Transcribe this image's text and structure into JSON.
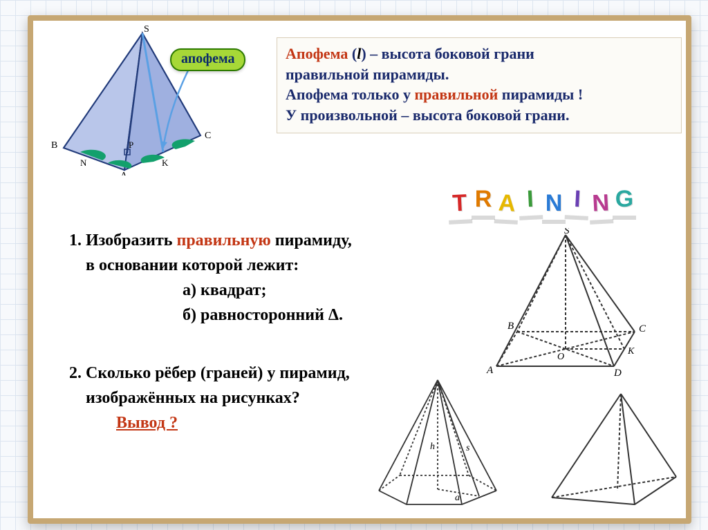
{
  "definition": {
    "term": "Апофема",
    "symbol": "l",
    "text1_a": " – высота боковой грани",
    "text1_b": "правильной пирамиды.",
    "text2_a": "Апофема  только у ",
    "text2_b": "правильной",
    "text2_c": " пирамиды !",
    "text3": "У произвольной – высота боковой грани.",
    "colors": {
      "term": "#c33614",
      "regular": "#1a2a6c",
      "red": "#c33614",
      "normal": "#1a2a6c"
    }
  },
  "training": {
    "letters": [
      "T",
      "R",
      "A",
      "I",
      "N",
      "I",
      "N",
      "G"
    ],
    "colors": [
      "#d62828",
      "#e07a00",
      "#e6b800",
      "#3a9a3a",
      "#2a7bd6",
      "#6a3fb3",
      "#b83a90",
      "#2aa8a0"
    ]
  },
  "tasks": {
    "t1_a": "Изобразить ",
    "t1_b": "правильную",
    "t1_c": " пирамиду,",
    "t1_d": "в основании которой лежит:",
    "t1_sub_a": "а)   квадрат;",
    "t1_sub_b": "б)   равносторонний Δ.",
    "t2_a": "Сколько рёбер (граней) у пирамид,",
    "t2_b": "изображённых  на рисунках?",
    "vyvod": "Вывод ?"
  },
  "diagram_main": {
    "labels": {
      "S": "S",
      "A": "A",
      "B": "B",
      "C": "C",
      "N": "N",
      "P": "P",
      "K": "K"
    },
    "apothem_label": "апофема",
    "stroke": "#223b7a",
    "fill_top": "#9fb0e0",
    "fill_base": "#6f8fd4",
    "apothem_color": "#5aa0e4",
    "angle_color": "#13a06c"
  },
  "diagram_square": {
    "labels": {
      "S": "S",
      "A": "A",
      "B": "B",
      "C": "C",
      "D": "D",
      "O": "O",
      "K": "K"
    },
    "stroke": "#333333",
    "dash": "4,3"
  },
  "diagram_hex": {
    "labels": {
      "h": "h",
      "s": "s",
      "a": "a"
    },
    "stroke": "#333333"
  },
  "diagram_tri": {
    "stroke": "#333333"
  }
}
